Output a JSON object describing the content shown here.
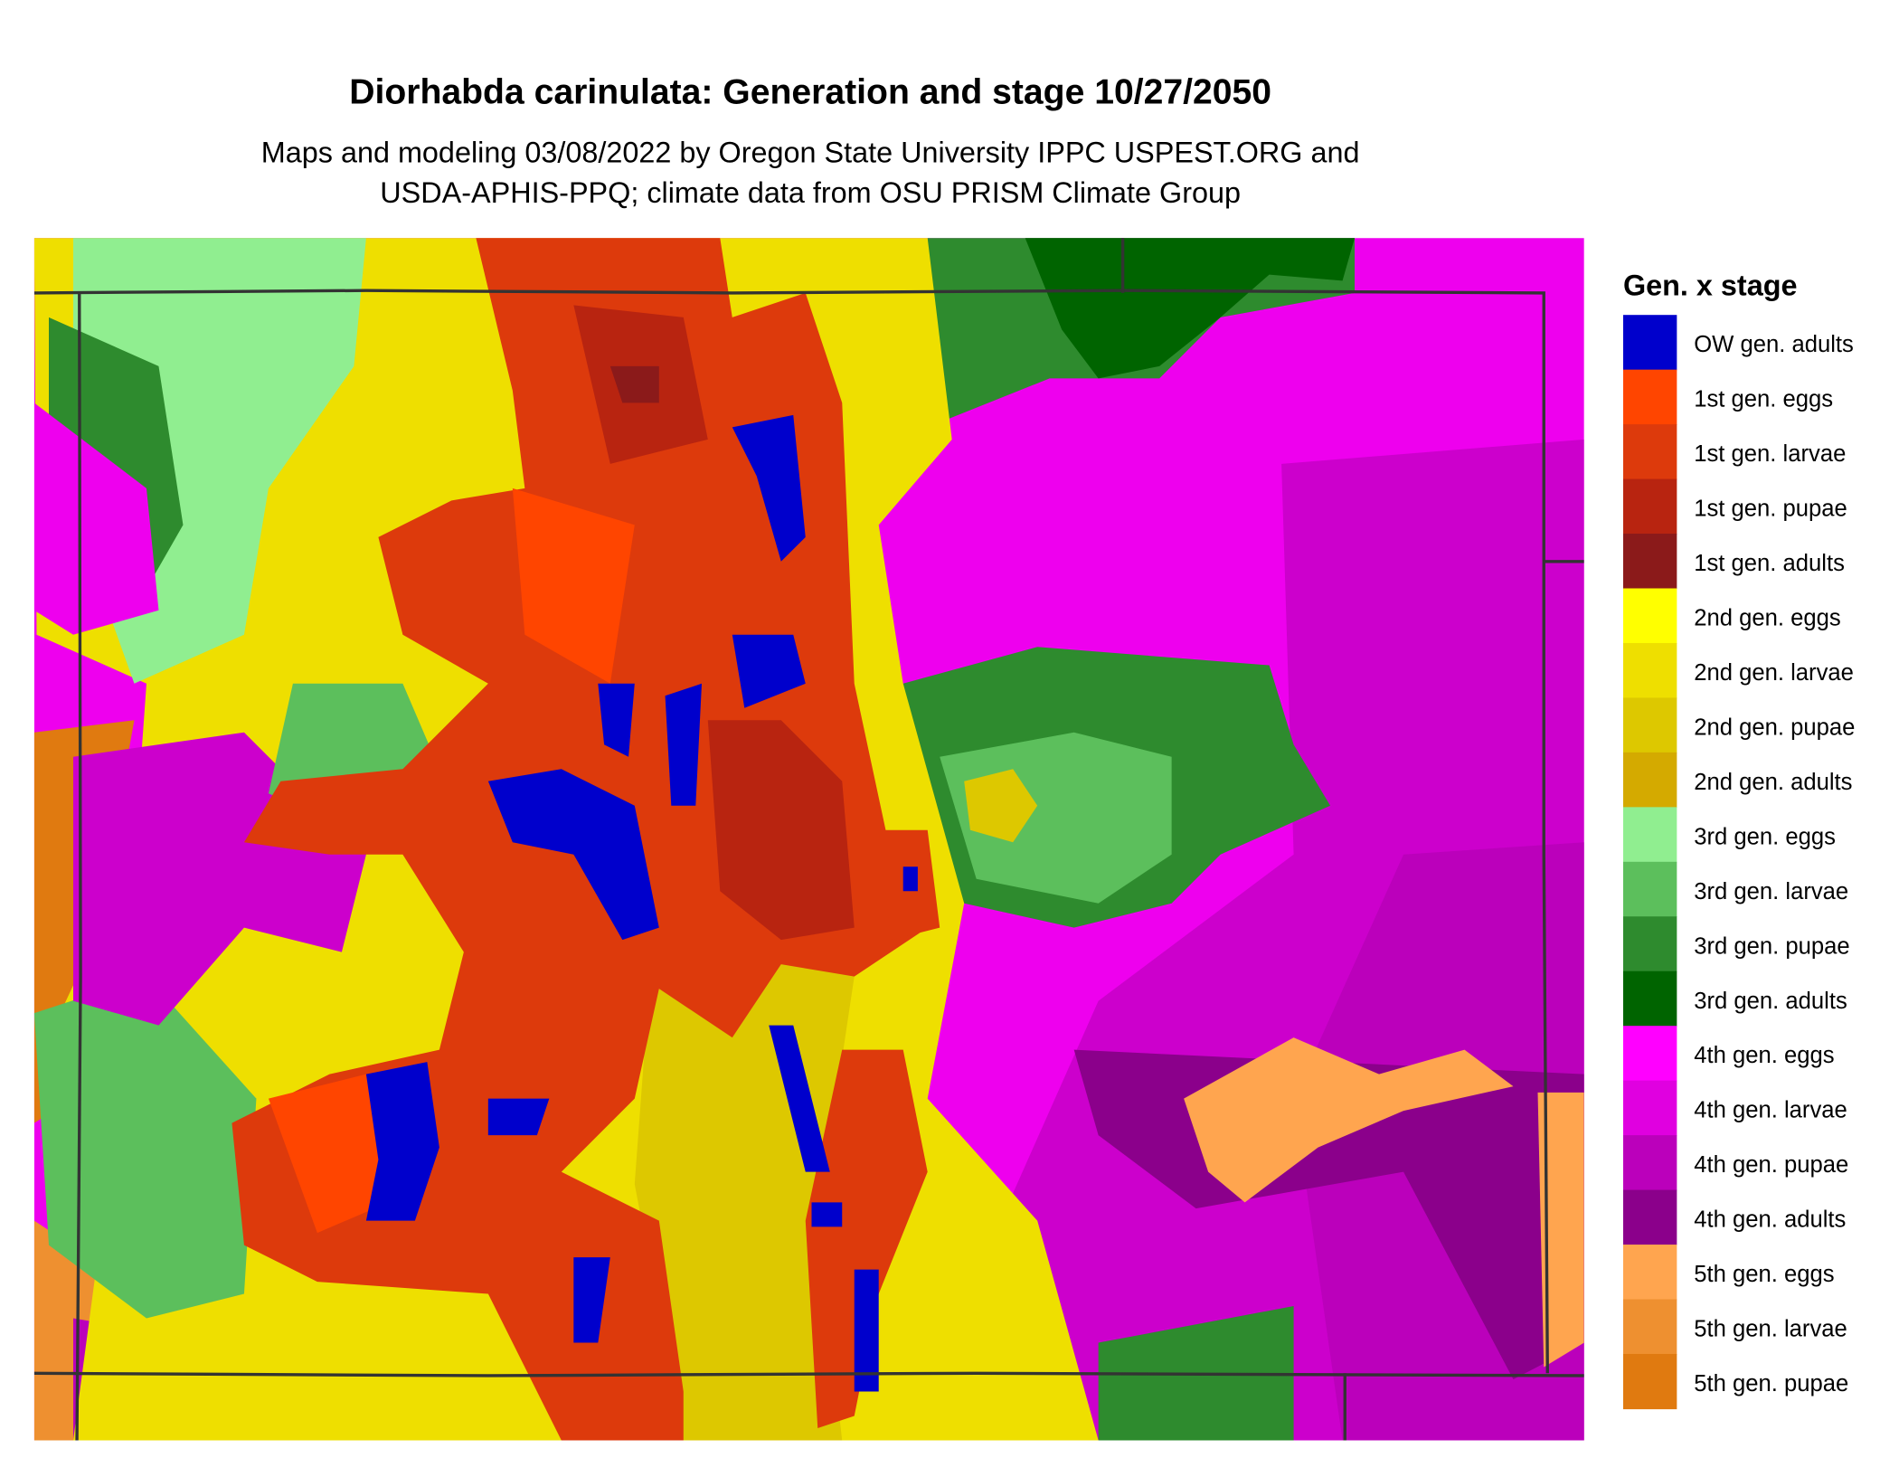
{
  "title": "Diorhabda carinulata: Generation and stage 10/27/2050",
  "subtitle": [
    "Maps and modeling 03/08/2022 by Oregon State University IPPC USPEST.ORG and",
    "USDA-APHIS-PPQ; climate data from OSU PRISM Climate Group"
  ],
  "legend": {
    "title": "Gen. x stage",
    "items": [
      {
        "label": "OW gen. adults",
        "color": "#0000cc"
      },
      {
        "label": "1st gen. eggs",
        "color": "#ff4500"
      },
      {
        "label": "1st gen. larvae",
        "color": "#dd3a0c"
      },
      {
        "label": "1st gen. pupae",
        "color": "#b82410"
      },
      {
        "label": "1st gen. adults",
        "color": "#8b1a1a"
      },
      {
        "label": "2nd gen. eggs",
        "color": "#ffff00"
      },
      {
        "label": "2nd gen. larvae",
        "color": "#eedf00"
      },
      {
        "label": "2nd gen. pupae",
        "color": "#ddc800"
      },
      {
        "label": "2nd gen. adults",
        "color": "#d4aa00"
      },
      {
        "label": "3rd gen. eggs",
        "color": "#90ee90"
      },
      {
        "label": "3rd gen. larvae",
        "color": "#5cbf5c"
      },
      {
        "label": "3rd gen. pupae",
        "color": "#2e8b2e"
      },
      {
        "label": "3rd gen. adults",
        "color": "#006400"
      },
      {
        "label": "4th gen. eggs",
        "color": "#ff00ff"
      },
      {
        "label": "4th gen. larvae",
        "color": "#e000e0"
      },
      {
        "label": "4th gen. pupae",
        "color": "#bb00bb"
      },
      {
        "label": "4th gen. adults",
        "color": "#8b008b"
      },
      {
        "label": "5th gen. eggs",
        "color": "#ffa54f"
      },
      {
        "label": "5th gen. larvae",
        "color": "#ee9030"
      },
      {
        "label": "5th gen. pupae",
        "color": "#e07a10"
      }
    ]
  }
}
